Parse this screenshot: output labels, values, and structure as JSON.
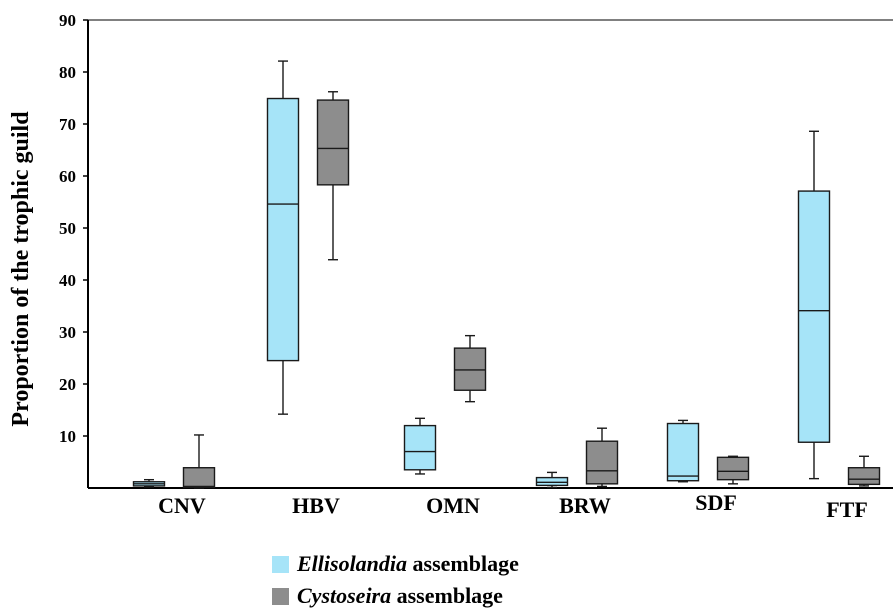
{
  "chart_data": {
    "type": "box",
    "ylabel": "Proportion of the trophic guild",
    "ylim": [
      0,
      90
    ],
    "yticks": [
      10,
      20,
      30,
      40,
      50,
      60,
      70,
      80,
      90
    ],
    "categories": [
      "CNV",
      "HBV",
      "OMN",
      "BRW",
      "SDF",
      "FTF"
    ],
    "grid": false,
    "legend_position": "bottom-center",
    "series": [
      {
        "name_italic": "Ellisolandia",
        "name_rest": " assemblage",
        "color": "#a6e4f8",
        "boxes": [
          {
            "min": 0.2,
            "q1": 0.4,
            "median": 0.8,
            "q3": 1.2,
            "max": 1.6
          },
          {
            "min": 14.2,
            "q1": 24.5,
            "median": 54.6,
            "q3": 74.9,
            "max": 82.1
          },
          {
            "min": 2.7,
            "q1": 3.5,
            "median": 7.0,
            "q3": 12.0,
            "max": 13.4
          },
          {
            "min": 0.1,
            "q1": 0.5,
            "median": 1.1,
            "q3": 2.0,
            "max": 3.0
          },
          {
            "min": 1.2,
            "q1": 1.4,
            "median": 2.3,
            "q3": 12.4,
            "max": 13.0
          },
          {
            "min": 1.8,
            "q1": 8.8,
            "median": 34.1,
            "q3": 57.1,
            "max": 68.6
          }
        ]
      },
      {
        "name_italic": "Cystoseira",
        "name_rest": " assemblage",
        "color": "#8d8d8d",
        "boxes": [
          {
            "min": 0.0,
            "q1": 0.1,
            "median": 0.3,
            "q3": 3.9,
            "max": 10.2
          },
          {
            "min": 43.9,
            "q1": 58.3,
            "median": 65.3,
            "q3": 74.6,
            "max": 76.2
          },
          {
            "min": 16.6,
            "q1": 18.8,
            "median": 22.7,
            "q3": 26.9,
            "max": 29.3
          },
          {
            "min": 0.3,
            "q1": 0.8,
            "median": 3.3,
            "q3": 9.0,
            "max": 11.5
          },
          {
            "min": 0.8,
            "q1": 1.6,
            "median": 3.2,
            "q3": 5.9,
            "max": 6.1
          },
          {
            "min": 0.4,
            "q1": 0.7,
            "median": 1.7,
            "q3": 3.9,
            "max": 6.1
          }
        ]
      }
    ]
  }
}
